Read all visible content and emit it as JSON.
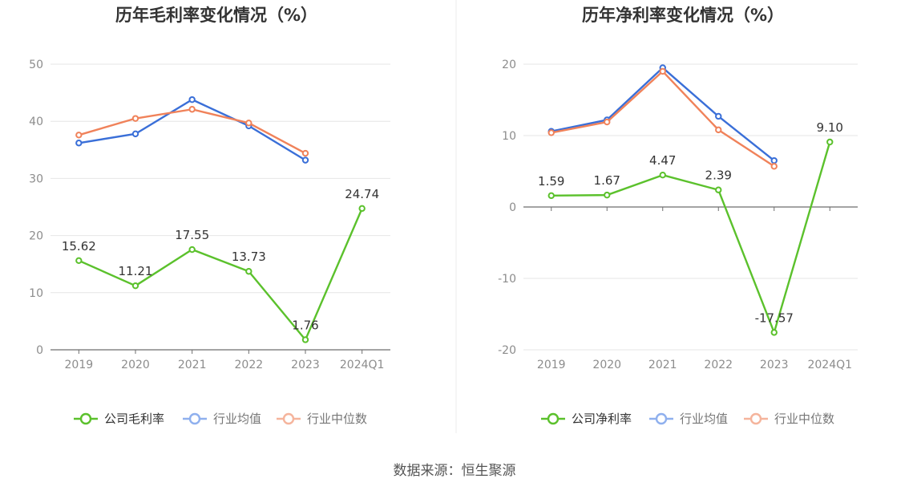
{
  "colors": {
    "company": "#5bc12c",
    "avg": "#3a6fd8",
    "median": "#f0825a",
    "avg_legend": "#8fb0ee",
    "median_legend": "#f5b49c"
  },
  "source": "数据来源：恒生聚源",
  "chart_data": [
    {
      "type": "line",
      "title": "历年毛利率变化情况（%）",
      "categories": [
        "2019",
        "2020",
        "2021",
        "2022",
        "2023",
        "2024Q1"
      ],
      "ylim": [
        0,
        50
      ],
      "yticks": [
        "0",
        "10",
        "20",
        "30",
        "40",
        "50"
      ],
      "grid": true,
      "legend_position": "bottom",
      "series": [
        {
          "name": "公司毛利率",
          "values": [
            15.62,
            11.21,
            17.55,
            13.73,
            1.76,
            24.74
          ],
          "labels": [
            "15.62",
            "11.21",
            "17.55",
            "13.73",
            "1.76",
            "24.74"
          ]
        },
        {
          "name": "行业均值",
          "values": [
            36.2,
            37.8,
            43.8,
            39.2,
            33.2,
            null
          ]
        },
        {
          "name": "行业中位数",
          "values": [
            37.6,
            40.5,
            42.1,
            39.7,
            34.4,
            null
          ]
        }
      ]
    },
    {
      "type": "line",
      "title": "历年净利率变化情况（%）",
      "categories": [
        "2019",
        "2020",
        "2021",
        "2022",
        "2023",
        "2024Q1"
      ],
      "ylim": [
        -20,
        20
      ],
      "yticks": [
        "-20",
        "-10",
        "0",
        "10",
        "20"
      ],
      "grid": true,
      "legend_position": "bottom",
      "series": [
        {
          "name": "公司净利率",
          "values": [
            1.59,
            1.67,
            4.47,
            2.39,
            -17.57,
            9.1
          ],
          "labels": [
            "1.59",
            "1.67",
            "4.47",
            "2.39",
            "-17.57",
            "9.10"
          ]
        },
        {
          "name": "行业均值",
          "values": [
            10.6,
            12.2,
            19.5,
            12.7,
            6.5,
            null
          ]
        },
        {
          "name": "行业中位数",
          "values": [
            10.4,
            11.9,
            19.0,
            10.8,
            5.7,
            null
          ]
        }
      ]
    }
  ]
}
